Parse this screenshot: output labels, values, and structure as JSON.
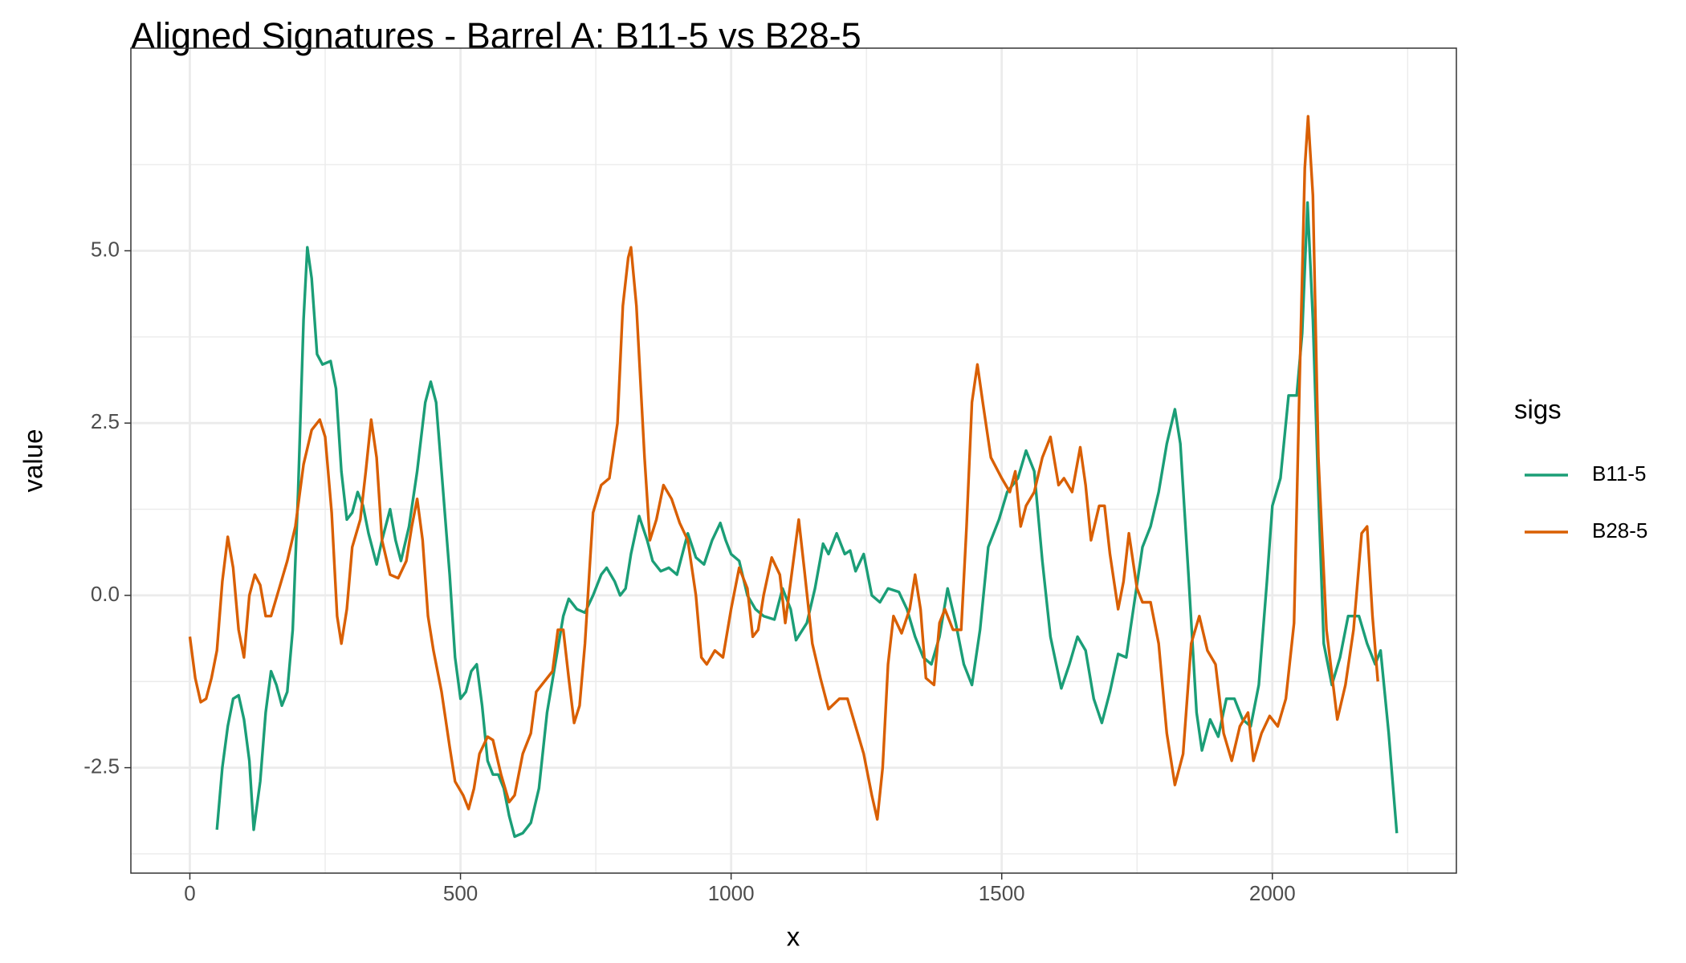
{
  "chart_data": {
    "type": "line",
    "title": "Aligned Signatures - Barrel A: B11-5 vs B28-5",
    "xlabel": "x",
    "ylabel": "value",
    "legend_title": "sigs",
    "legend": "right",
    "grid": true,
    "xlim": [
      -109,
      2340
    ],
    "ylim": [
      -4.03,
      7.94
    ],
    "xticks": [
      0,
      500,
      1000,
      1500,
      2000
    ],
    "yticks": [
      -2.5,
      {
        "value": 0,
        "label": "0.0"
      },
      2.5,
      {
        "value": 5,
        "label": "5.0"
      }
    ],
    "series": [
      {
        "name": "B11-5",
        "color": "#1b9e77",
        "x": [
          50,
          60,
          70,
          80,
          90,
          100,
          110,
          118,
          130,
          140,
          150,
          160,
          170,
          180,
          190,
          200,
          210,
          217,
          225,
          235,
          245,
          260,
          270,
          280,
          290,
          300,
          310,
          320,
          330,
          345,
          355,
          370,
          380,
          390,
          405,
          420,
          435,
          445,
          455,
          465,
          480,
          490,
          500,
          510,
          520,
          530,
          540,
          550,
          560,
          570,
          580,
          590,
          600,
          615,
          630,
          645,
          660,
          675,
          690,
          700,
          715,
          730,
          745,
          760,
          770,
          785,
          795,
          805,
          815,
          830,
          845,
          855,
          870,
          885,
          900,
          920,
          935,
          950,
          965,
          980,
          990,
          1000,
          1015,
          1030,
          1045,
          1060,
          1080,
          1095,
          1110,
          1120,
          1140,
          1155,
          1170,
          1180,
          1195,
          1210,
          1220,
          1230,
          1245,
          1260,
          1275,
          1290,
          1310,
          1325,
          1340,
          1355,
          1370,
          1385,
          1400,
          1415,
          1430,
          1445,
          1460,
          1475,
          1495,
          1510,
          1530,
          1545,
          1560,
          1575,
          1590,
          1610,
          1625,
          1640,
          1655,
          1670,
          1685,
          1700,
          1715,
          1730,
          1745,
          1760,
          1775,
          1790,
          1805,
          1820,
          1830,
          1845,
          1860,
          1870,
          1885,
          1900,
          1915,
          1930,
          1945,
          1960,
          1975,
          1990,
          2000,
          2015,
          2030,
          2045,
          2055,
          2065,
          2075,
          2085,
          2095,
          2110,
          2125,
          2140,
          2160,
          2175,
          2190,
          2200,
          2215,
          2230
        ],
        "values": [
          -3.4,
          -2.5,
          -1.9,
          -1.5,
          -1.45,
          -1.8,
          -2.4,
          -3.4,
          -2.7,
          -1.7,
          -1.1,
          -1.3,
          -1.6,
          -1.4,
          -0.5,
          1.5,
          4.0,
          5.05,
          4.6,
          3.5,
          3.35,
          3.4,
          3.0,
          1.8,
          1.1,
          1.2,
          1.5,
          1.3,
          0.9,
          0.45,
          0.8,
          1.25,
          0.8,
          0.5,
          1.0,
          1.8,
          2.8,
          3.1,
          2.8,
          1.8,
          0.3,
          -0.9,
          -1.5,
          -1.4,
          -1.1,
          -1.0,
          -1.6,
          -2.4,
          -2.6,
          -2.6,
          -2.8,
          -3.2,
          -3.5,
          -3.45,
          -3.3,
          -2.8,
          -1.7,
          -1.0,
          -0.3,
          -0.05,
          -0.2,
          -0.25,
          0.0,
          0.3,
          0.4,
          0.2,
          0.0,
          0.1,
          0.6,
          1.15,
          0.8,
          0.5,
          0.35,
          0.4,
          0.3,
          0.9,
          0.55,
          0.45,
          0.8,
          1.05,
          0.8,
          0.6,
          0.5,
          0.0,
          -0.2,
          -0.3,
          -0.35,
          0.1,
          -0.2,
          -0.65,
          -0.4,
          0.1,
          0.75,
          0.6,
          0.9,
          0.6,
          0.65,
          0.35,
          0.6,
          0.0,
          -0.1,
          0.1,
          0.05,
          -0.2,
          -0.6,
          -0.9,
          -1.0,
          -0.6,
          0.1,
          -0.4,
          -1.0,
          -1.3,
          -0.5,
          0.7,
          1.1,
          1.5,
          1.7,
          2.1,
          1.8,
          0.5,
          -0.6,
          -1.35,
          -1.0,
          -0.6,
          -0.8,
          -1.5,
          -1.85,
          -1.4,
          -0.85,
          -0.9,
          -0.1,
          0.7,
          1.0,
          1.5,
          2.2,
          2.7,
          2.2,
          0.3,
          -1.7,
          -2.25,
          -1.8,
          -2.05,
          -1.5,
          -1.5,
          -1.8,
          -1.9,
          -1.3,
          0.2,
          1.3,
          1.7,
          2.9,
          2.9,
          3.8,
          5.7,
          4.0,
          1.5,
          -0.7,
          -1.3,
          -0.9,
          -0.3,
          -0.3,
          -0.7,
          -1.0,
          -0.8,
          -2.0,
          -3.45
        ]
      },
      {
        "name": "B28-5",
        "color": "#d95f02",
        "x": [
          0,
          10,
          20,
          30,
          40,
          50,
          60,
          70,
          80,
          90,
          100,
          110,
          120,
          130,
          140,
          150,
          165,
          180,
          195,
          210,
          225,
          240,
          250,
          262,
          272,
          280,
          290,
          300,
          315,
          325,
          335,
          345,
          355,
          370,
          385,
          400,
          410,
          420,
          430,
          440,
          450,
          465,
          480,
          490,
          505,
          515,
          525,
          535,
          550,
          560,
          575,
          590,
          600,
          615,
          630,
          640,
          655,
          670,
          680,
          690,
          700,
          710,
          720,
          730,
          745,
          760,
          775,
          790,
          800,
          810,
          815,
          825,
          840,
          850,
          862,
          875,
          890,
          905,
          920,
          935,
          945,
          955,
          970,
          985,
          1000,
          1015,
          1030,
          1040,
          1050,
          1060,
          1075,
          1090,
          1100,
          1115,
          1125,
          1135,
          1150,
          1165,
          1180,
          1200,
          1215,
          1230,
          1245,
          1260,
          1270,
          1280,
          1290,
          1300,
          1315,
          1330,
          1340,
          1350,
          1360,
          1375,
          1385,
          1395,
          1410,
          1425,
          1435,
          1445,
          1455,
          1465,
          1480,
          1500,
          1515,
          1525,
          1535,
          1545,
          1560,
          1575,
          1590,
          1605,
          1615,
          1630,
          1645,
          1655,
          1665,
          1680,
          1690,
          1700,
          1715,
          1725,
          1735,
          1750,
          1760,
          1775,
          1790,
          1805,
          1820,
          1835,
          1850,
          1865,
          1880,
          1895,
          1910,
          1925,
          1940,
          1955,
          1965,
          1980,
          1995,
          2010,
          2025,
          2040,
          2050,
          2060,
          2066,
          2075,
          2085,
          2100,
          2120,
          2135,
          2150,
          2165,
          2175,
          2185,
          2195
        ],
        "values": [
          -0.6,
          -1.2,
          -1.55,
          -1.5,
          -1.2,
          -0.8,
          0.2,
          0.85,
          0.4,
          -0.5,
          -0.9,
          0.0,
          0.3,
          0.15,
          -0.3,
          -0.3,
          0.1,
          0.5,
          1.0,
          1.9,
          2.4,
          2.55,
          2.3,
          1.2,
          -0.3,
          -0.7,
          -0.2,
          0.7,
          1.1,
          1.8,
          2.55,
          2.0,
          0.8,
          0.3,
          0.25,
          0.5,
          1.0,
          1.4,
          0.8,
          -0.3,
          -0.8,
          -1.4,
          -2.2,
          -2.7,
          -2.9,
          -3.1,
          -2.8,
          -2.3,
          -2.05,
          -2.1,
          -2.6,
          -3.0,
          -2.9,
          -2.3,
          -2.0,
          -1.4,
          -1.25,
          -1.1,
          -0.5,
          -0.5,
          -1.2,
          -1.85,
          -1.6,
          -0.7,
          1.2,
          1.6,
          1.7,
          2.5,
          4.2,
          4.9,
          5.05,
          4.2,
          2.0,
          0.8,
          1.1,
          1.6,
          1.4,
          1.05,
          0.8,
          0.0,
          -0.9,
          -1.0,
          -0.8,
          -0.9,
          -0.2,
          0.4,
          0.1,
          -0.6,
          -0.5,
          0.0,
          0.55,
          0.3,
          -0.4,
          0.5,
          1.1,
          0.4,
          -0.7,
          -1.2,
          -1.65,
          -1.5,
          -1.5,
          -1.9,
          -2.3,
          -2.9,
          -3.25,
          -2.5,
          -1.0,
          -0.3,
          -0.55,
          -0.2,
          0.3,
          -0.2,
          -1.2,
          -1.3,
          -0.4,
          -0.2,
          -0.5,
          -0.5,
          1.0,
          2.8,
          3.35,
          2.8,
          2.0,
          1.7,
          1.5,
          1.8,
          1.0,
          1.3,
          1.5,
          2.0,
          2.3,
          1.6,
          1.7,
          1.5,
          2.15,
          1.6,
          0.8,
          1.3,
          1.3,
          0.6,
          -0.2,
          0.2,
          0.9,
          0.1,
          -0.1,
          -0.1,
          -0.7,
          -2.0,
          -2.75,
          -2.3,
          -0.7,
          -0.3,
          -0.8,
          -1.0,
          -2.0,
          -2.4,
          -1.9,
          -1.7,
          -2.4,
          -2.0,
          -1.75,
          -1.9,
          -1.5,
          -0.4,
          3.0,
          6.2,
          6.95,
          5.8,
          2.0,
          -0.5,
          -1.8,
          -1.3,
          -0.5,
          0.9,
          1.0,
          -0.3,
          -1.25
        ]
      }
    ]
  }
}
